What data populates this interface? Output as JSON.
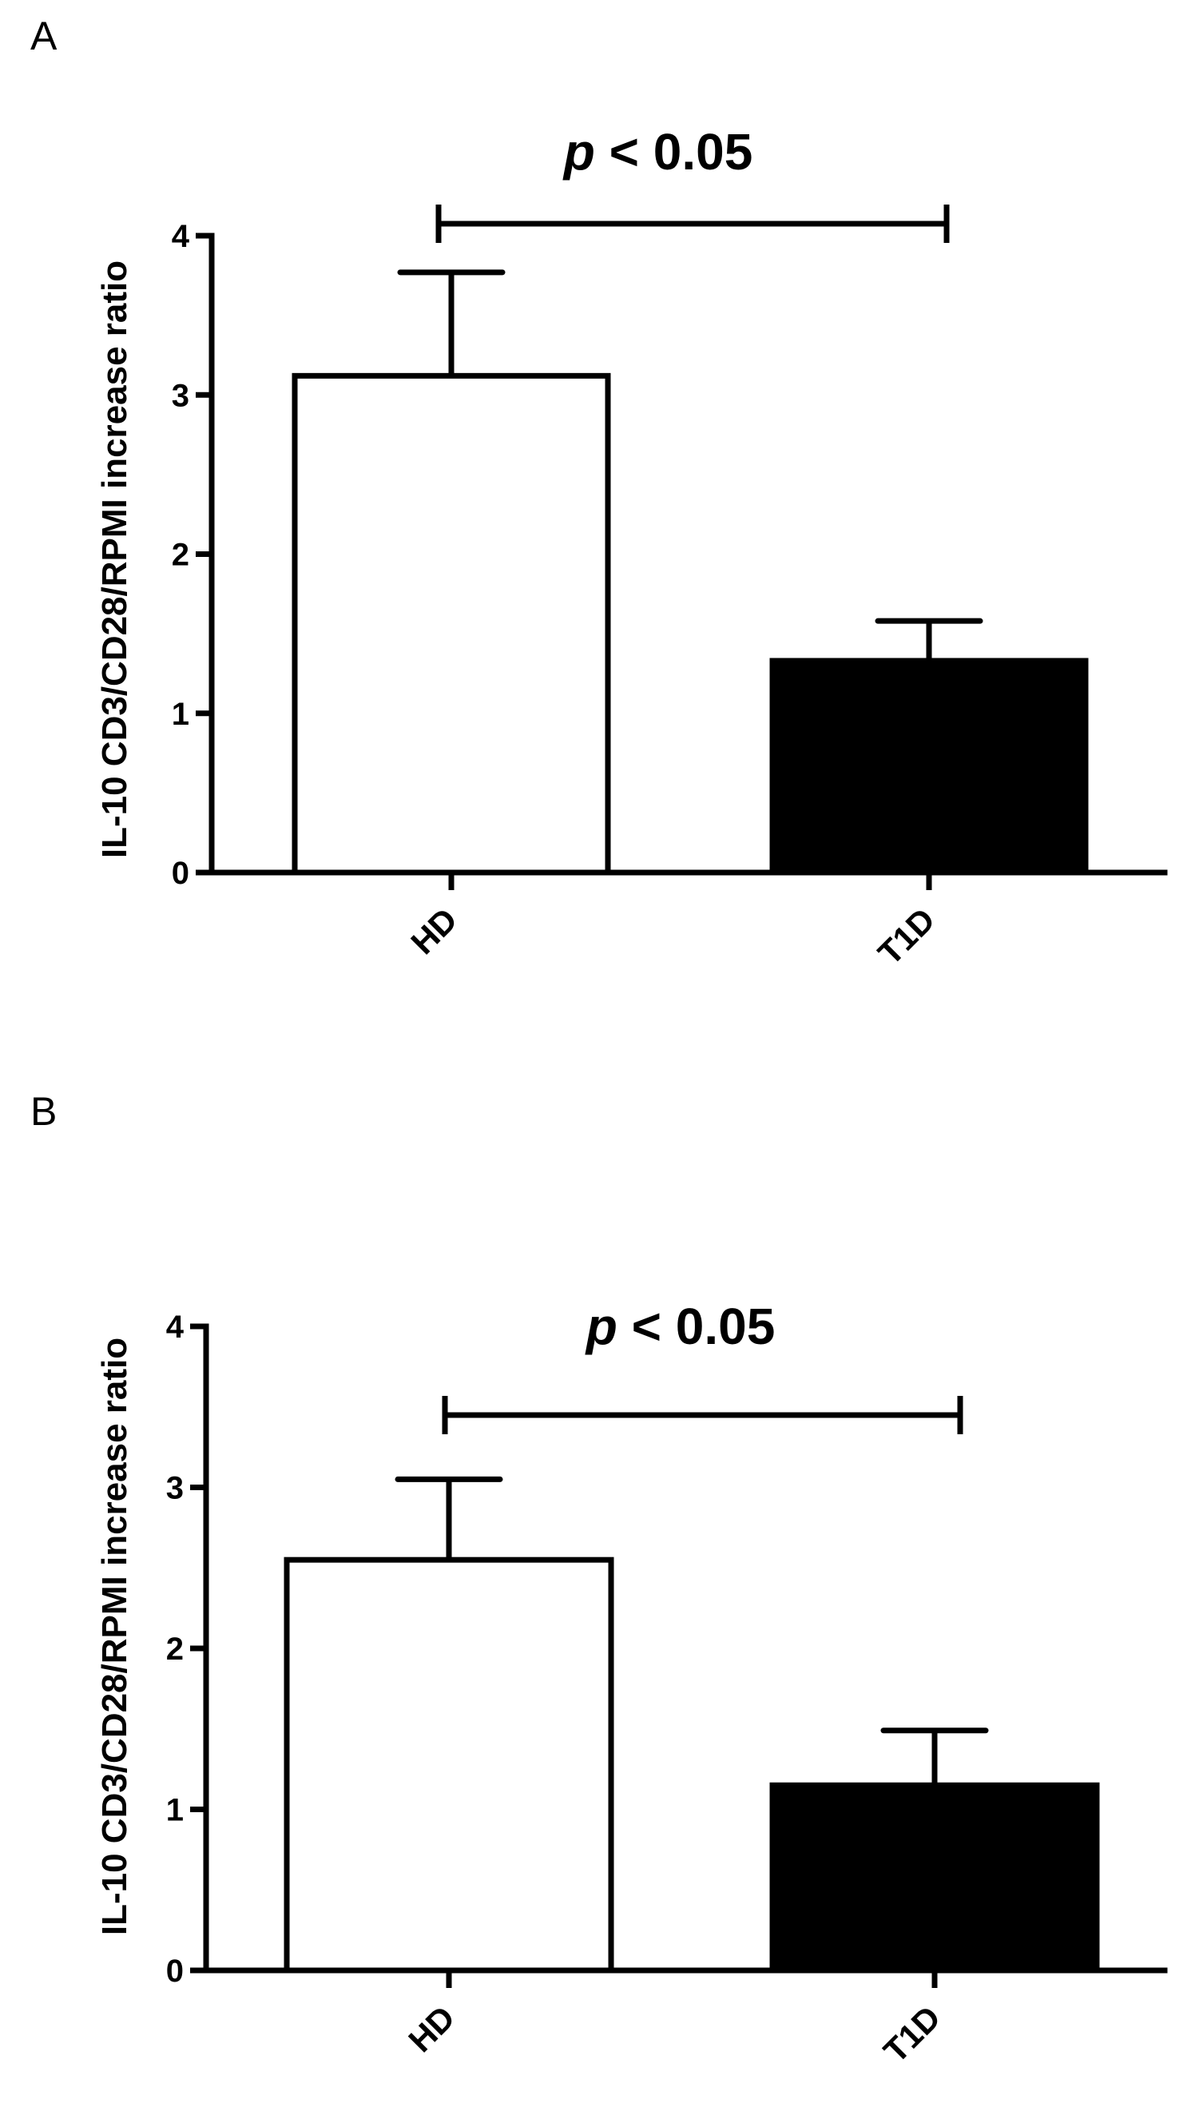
{
  "chart_data": [
    {
      "panel_label": "A",
      "type": "bar",
      "categories": [
        "HD",
        "T1D"
      ],
      "values": [
        3.12,
        1.33
      ],
      "errors": [
        0.65,
        0.25
      ],
      "bar_fills": [
        "#ffffff",
        "#000000"
      ],
      "ylabel": "IL-10 CD3/CD28/RPMI increase ratio",
      "xlabel": "",
      "ylim": [
        0,
        4
      ],
      "yticks": [
        "0",
        "1",
        "2",
        "3",
        "4"
      ],
      "significance": {
        "p": "p",
        "text": " < 0.05"
      }
    },
    {
      "panel_label": "B",
      "type": "bar",
      "categories": [
        "HD",
        "T1D"
      ],
      "values": [
        2.55,
        1.15
      ],
      "errors": [
        0.5,
        0.34
      ],
      "bar_fills": [
        "#ffffff",
        "#000000"
      ],
      "ylabel": "IL-10 CD3/CD28/RPMI increase ratio",
      "xlabel": "",
      "ylim": [
        0,
        4
      ],
      "yticks": [
        "0",
        "1",
        "2",
        "3",
        "4"
      ],
      "significance": {
        "p": "p",
        "text": " < 0.05"
      }
    }
  ]
}
